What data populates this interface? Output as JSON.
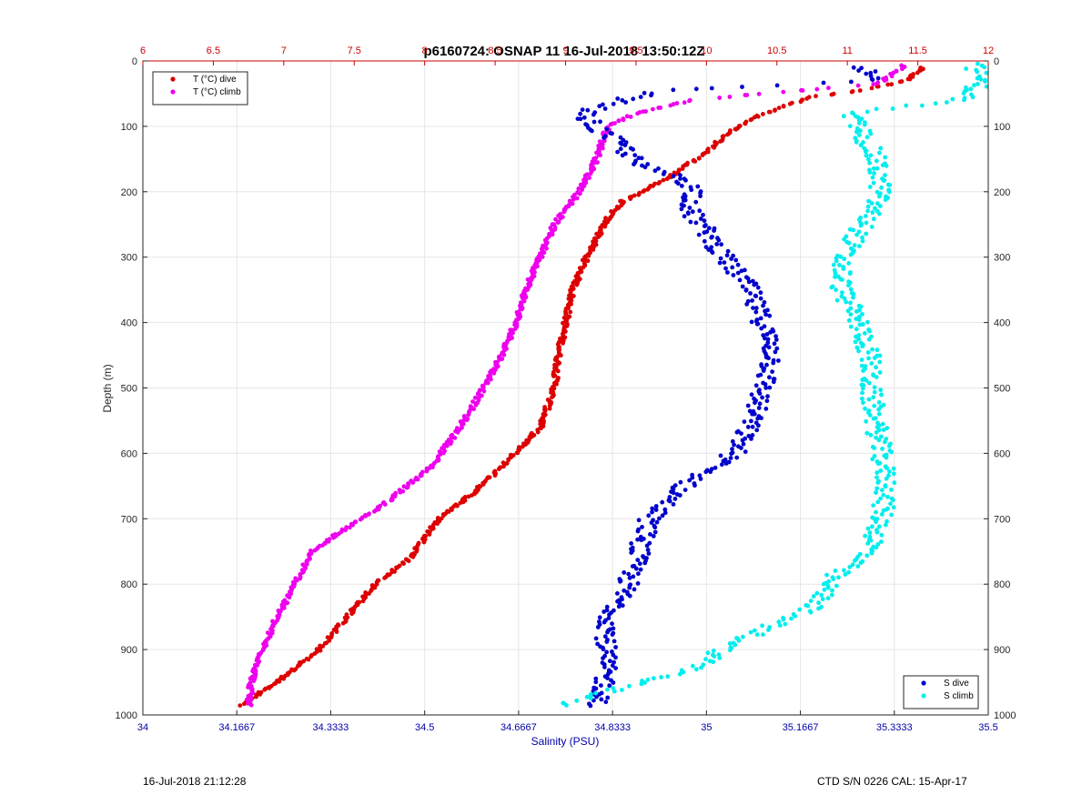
{
  "footer": {
    "timestamp": "16-Jul-2018 21:12:28",
    "instrument": "CTD S/N 0226  CAL: 15-Apr-17"
  },
  "chart_data": {
    "type": "scatter",
    "title": "p6160724: OSNAP 11 16-Jul-2018 13:50:12Z",
    "ylabel": "Depth (m)",
    "xlabel_bottom": "Salinity (PSU)",
    "ylim": [
      0,
      1000
    ],
    "y_reversed": true,
    "y_ticks": [
      0,
      100,
      200,
      300,
      400,
      500,
      600,
      700,
      800,
      900,
      1000
    ],
    "y_tick_labels": [
      "0",
      "100",
      "200",
      "300",
      "400",
      "500",
      "600",
      "700",
      "800",
      "900",
      "1000"
    ],
    "x_bottom": {
      "lim": [
        34,
        35.5
      ],
      "ticks": [
        34,
        34.1667,
        34.3333,
        34.5,
        34.6667,
        34.8333,
        35,
        35.1667,
        35.3333,
        35.5
      ],
      "tick_labels": [
        "34",
        "34.1667",
        "34.3333",
        "34.5",
        "34.6667",
        "34.8333",
        "35",
        "35.1667",
        "35.3333",
        "35.5"
      ],
      "color": "#0000aa"
    },
    "x_top": {
      "lim": [
        6,
        12
      ],
      "ticks": [
        6,
        6.5,
        7,
        7.5,
        8,
        8.5,
        9,
        9.5,
        10,
        10.5,
        11,
        11.5,
        12
      ],
      "tick_labels": [
        "6",
        "6.5",
        "7",
        "7.5",
        "8",
        "8.5",
        "9",
        "9.5",
        "10",
        "10.5",
        "11",
        "11.5",
        "12"
      ],
      "color": "#cc0000"
    },
    "grid": true,
    "legend_top": {
      "placement": "top-left",
      "entries": [
        {
          "label": "T (°C) dive",
          "color": "#dd0000"
        },
        {
          "label": "T (°C) climb",
          "color": "#ee00ee"
        }
      ]
    },
    "legend_bottom": {
      "placement": "bottom-right",
      "entries": [
        {
          "label": "S dive",
          "color": "#0000cc"
        },
        {
          "label": "S climb",
          "color": "#00eeee"
        }
      ]
    },
    "series": [
      {
        "name": "T (°C) dive",
        "axis": "top",
        "color": "#dd0000",
        "profile": [
          [
            10,
            11.53
          ],
          [
            30,
            11.42
          ],
          [
            45,
            11.1
          ],
          [
            55,
            10.75
          ],
          [
            70,
            10.55
          ],
          [
            85,
            10.35
          ],
          [
            110,
            10.15
          ],
          [
            140,
            10.0
          ],
          [
            175,
            9.75
          ],
          [
            200,
            9.55
          ],
          [
            215,
            9.4
          ],
          [
            240,
            9.3
          ],
          [
            300,
            9.15
          ],
          [
            350,
            9.05
          ],
          [
            400,
            9.0
          ],
          [
            450,
            8.95
          ],
          [
            500,
            8.92
          ],
          [
            560,
            8.82
          ],
          [
            620,
            8.55
          ],
          [
            660,
            8.35
          ],
          [
            700,
            8.1
          ],
          [
            760,
            7.9
          ],
          [
            800,
            7.65
          ],
          [
            850,
            7.45
          ],
          [
            900,
            7.25
          ],
          [
            950,
            6.95
          ],
          [
            985,
            6.7
          ]
        ]
      },
      {
        "name": "T (°C) climb",
        "axis": "top",
        "color": "#ee00ee",
        "profile": [
          [
            8,
            11.4
          ],
          [
            20,
            11.32
          ],
          [
            35,
            11.22
          ],
          [
            50,
            10.4
          ],
          [
            60,
            9.9
          ],
          [
            80,
            9.5
          ],
          [
            100,
            9.3
          ],
          [
            150,
            9.22
          ],
          [
            200,
            9.1
          ],
          [
            250,
            8.92
          ],
          [
            300,
            8.82
          ],
          [
            350,
            8.72
          ],
          [
            400,
            8.65
          ],
          [
            450,
            8.55
          ],
          [
            500,
            8.42
          ],
          [
            560,
            8.25
          ],
          [
            620,
            8.05
          ],
          [
            680,
            7.7
          ],
          [
            720,
            7.4
          ],
          [
            750,
            7.2
          ],
          [
            800,
            7.08
          ],
          [
            850,
            6.95
          ],
          [
            900,
            6.85
          ],
          [
            950,
            6.77
          ],
          [
            985,
            6.75
          ]
        ]
      },
      {
        "name": "S dive",
        "axis": "bottom",
        "color": "#0000cc",
        "profile": [
          [
            10,
            35.28
          ],
          [
            30,
            35.29
          ],
          [
            45,
            34.92
          ],
          [
            60,
            34.85
          ],
          [
            80,
            34.78
          ],
          [
            100,
            34.8
          ],
          [
            130,
            34.85
          ],
          [
            160,
            34.88
          ],
          [
            180,
            34.96
          ],
          [
            200,
            34.98
          ],
          [
            230,
            34.97
          ],
          [
            260,
            35.0
          ],
          [
            300,
            35.03
          ],
          [
            340,
            35.07
          ],
          [
            400,
            35.1
          ],
          [
            450,
            35.12
          ],
          [
            500,
            35.1
          ],
          [
            550,
            35.08
          ],
          [
            600,
            35.05
          ],
          [
            650,
            34.96
          ],
          [
            700,
            34.9
          ],
          [
            750,
            34.88
          ],
          [
            800,
            34.86
          ],
          [
            850,
            34.83
          ],
          [
            900,
            34.82
          ],
          [
            950,
            34.82
          ],
          [
            985,
            34.81
          ]
        ]
      },
      {
        "name": "S climb",
        "axis": "bottom",
        "color": "#00eeee",
        "profile": [
          [
            5,
            35.47
          ],
          [
            20,
            35.49
          ],
          [
            40,
            35.48
          ],
          [
            60,
            35.45
          ],
          [
            80,
            35.25
          ],
          [
            100,
            35.27
          ],
          [
            150,
            35.3
          ],
          [
            200,
            35.31
          ],
          [
            250,
            35.28
          ],
          [
            300,
            35.24
          ],
          [
            350,
            35.24
          ],
          [
            400,
            35.27
          ],
          [
            450,
            35.29
          ],
          [
            500,
            35.29
          ],
          [
            550,
            35.3
          ],
          [
            600,
            35.31
          ],
          [
            650,
            35.32
          ],
          [
            700,
            35.31
          ],
          [
            750,
            35.29
          ],
          [
            790,
            35.22
          ],
          [
            830,
            35.2
          ],
          [
            870,
            35.1
          ],
          [
            900,
            35.03
          ],
          [
            930,
            34.98
          ],
          [
            950,
            34.88
          ],
          [
            970,
            34.8
          ],
          [
            985,
            34.75
          ]
        ]
      }
    ]
  }
}
